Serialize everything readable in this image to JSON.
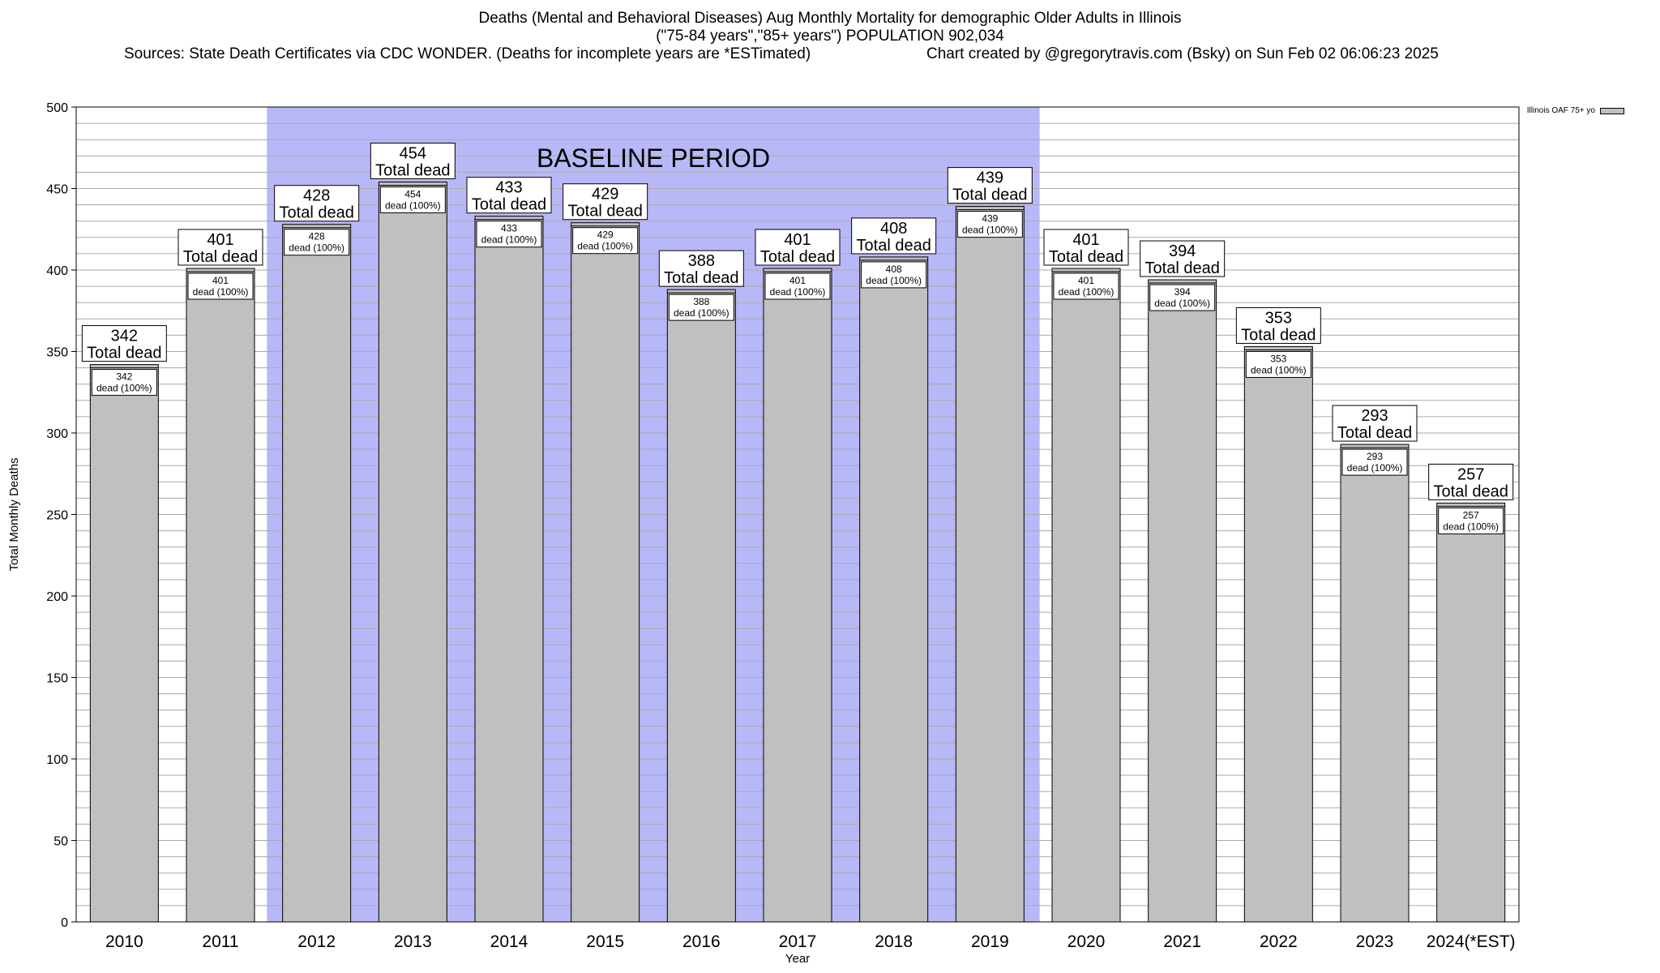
{
  "header": {
    "title": "Deaths (Mental and Behavioral Diseases) Aug Monthly Mortality for demographic Older Adults in Illinois",
    "subtitle": "(\"75-84 years\",\"85+ years\") POPULATION 902,034",
    "sources": "Sources: State Death Certificates via CDC WONDER. (Deaths for incomplete years are *ESTimated)",
    "credit": "Chart created by @gregorytravis.com (Bsky) on Sun Feb 02 06:06:23 2025"
  },
  "legend": {
    "label": "Illinois OAF 75+ yo"
  },
  "chart_data": {
    "type": "bar",
    "xlabel": "Year",
    "ylabel": "Total Monthly Deaths",
    "ylim": [
      0,
      500
    ],
    "yticks": [
      0,
      50,
      100,
      150,
      200,
      250,
      300,
      350,
      400,
      450,
      500
    ],
    "categories": [
      "2010",
      "2011",
      "2012",
      "2013",
      "2014",
      "2015",
      "2016",
      "2017",
      "2018",
      "2019",
      "2020",
      "2021",
      "2022",
      "2023",
      "2024(*EST)"
    ],
    "series": [
      {
        "name": "Illinois OAF 75+ yo",
        "values": [
          342,
          401,
          428,
          454,
          433,
          429,
          388,
          401,
          408,
          439,
          401,
          394,
          353,
          293,
          257
        ]
      }
    ],
    "bar_label_total": "Total dead",
    "bar_label_inner": "dead (100%)",
    "baseline": {
      "label": "BASELINE PERIOD",
      "start": "2012",
      "end": "2019"
    },
    "grid": true,
    "legend_position": "top-right",
    "colors": {
      "bar": "#c0c0c0",
      "baseline": "#b8b8f8",
      "grid": "#aaaaaa"
    }
  }
}
